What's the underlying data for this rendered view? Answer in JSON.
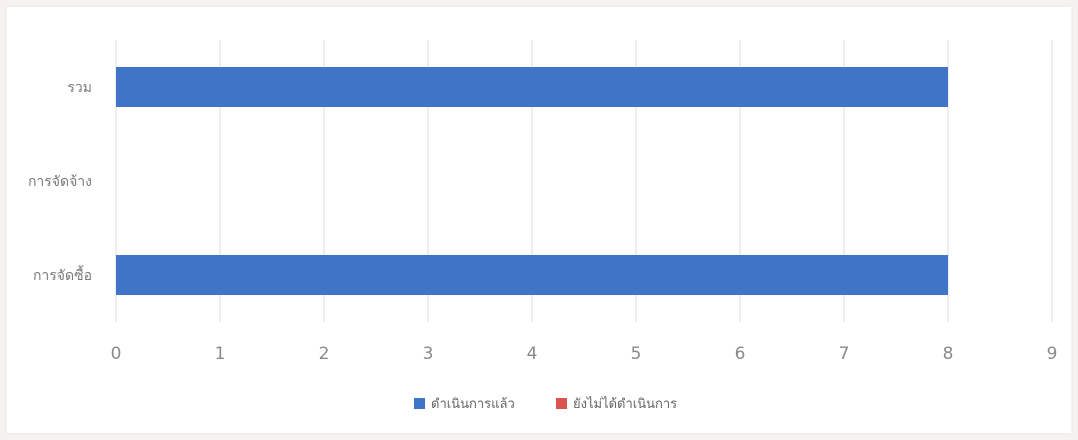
{
  "chart_data": {
    "type": "bar",
    "orientation": "horizontal",
    "categories": [
      "การจัดซื้อ",
      "การจัดจ้าง",
      "รวม"
    ],
    "series": [
      {
        "name": "ดำเนินการแล้ว",
        "color": "#3f74c6",
        "values": [
          8,
          0,
          8
        ]
      },
      {
        "name": "ยังไม่ได้ดำเนินการ",
        "color": "#d9534f",
        "values": [
          0,
          0,
          0
        ]
      }
    ],
    "xlim": [
      0,
      9
    ],
    "xticks": [
      "0",
      "1",
      "2",
      "3",
      "4",
      "5",
      "6",
      "7",
      "8",
      "9"
    ],
    "grid": true,
    "legend_position": "bottom",
    "title": "",
    "xlabel": "",
    "ylabel": ""
  }
}
